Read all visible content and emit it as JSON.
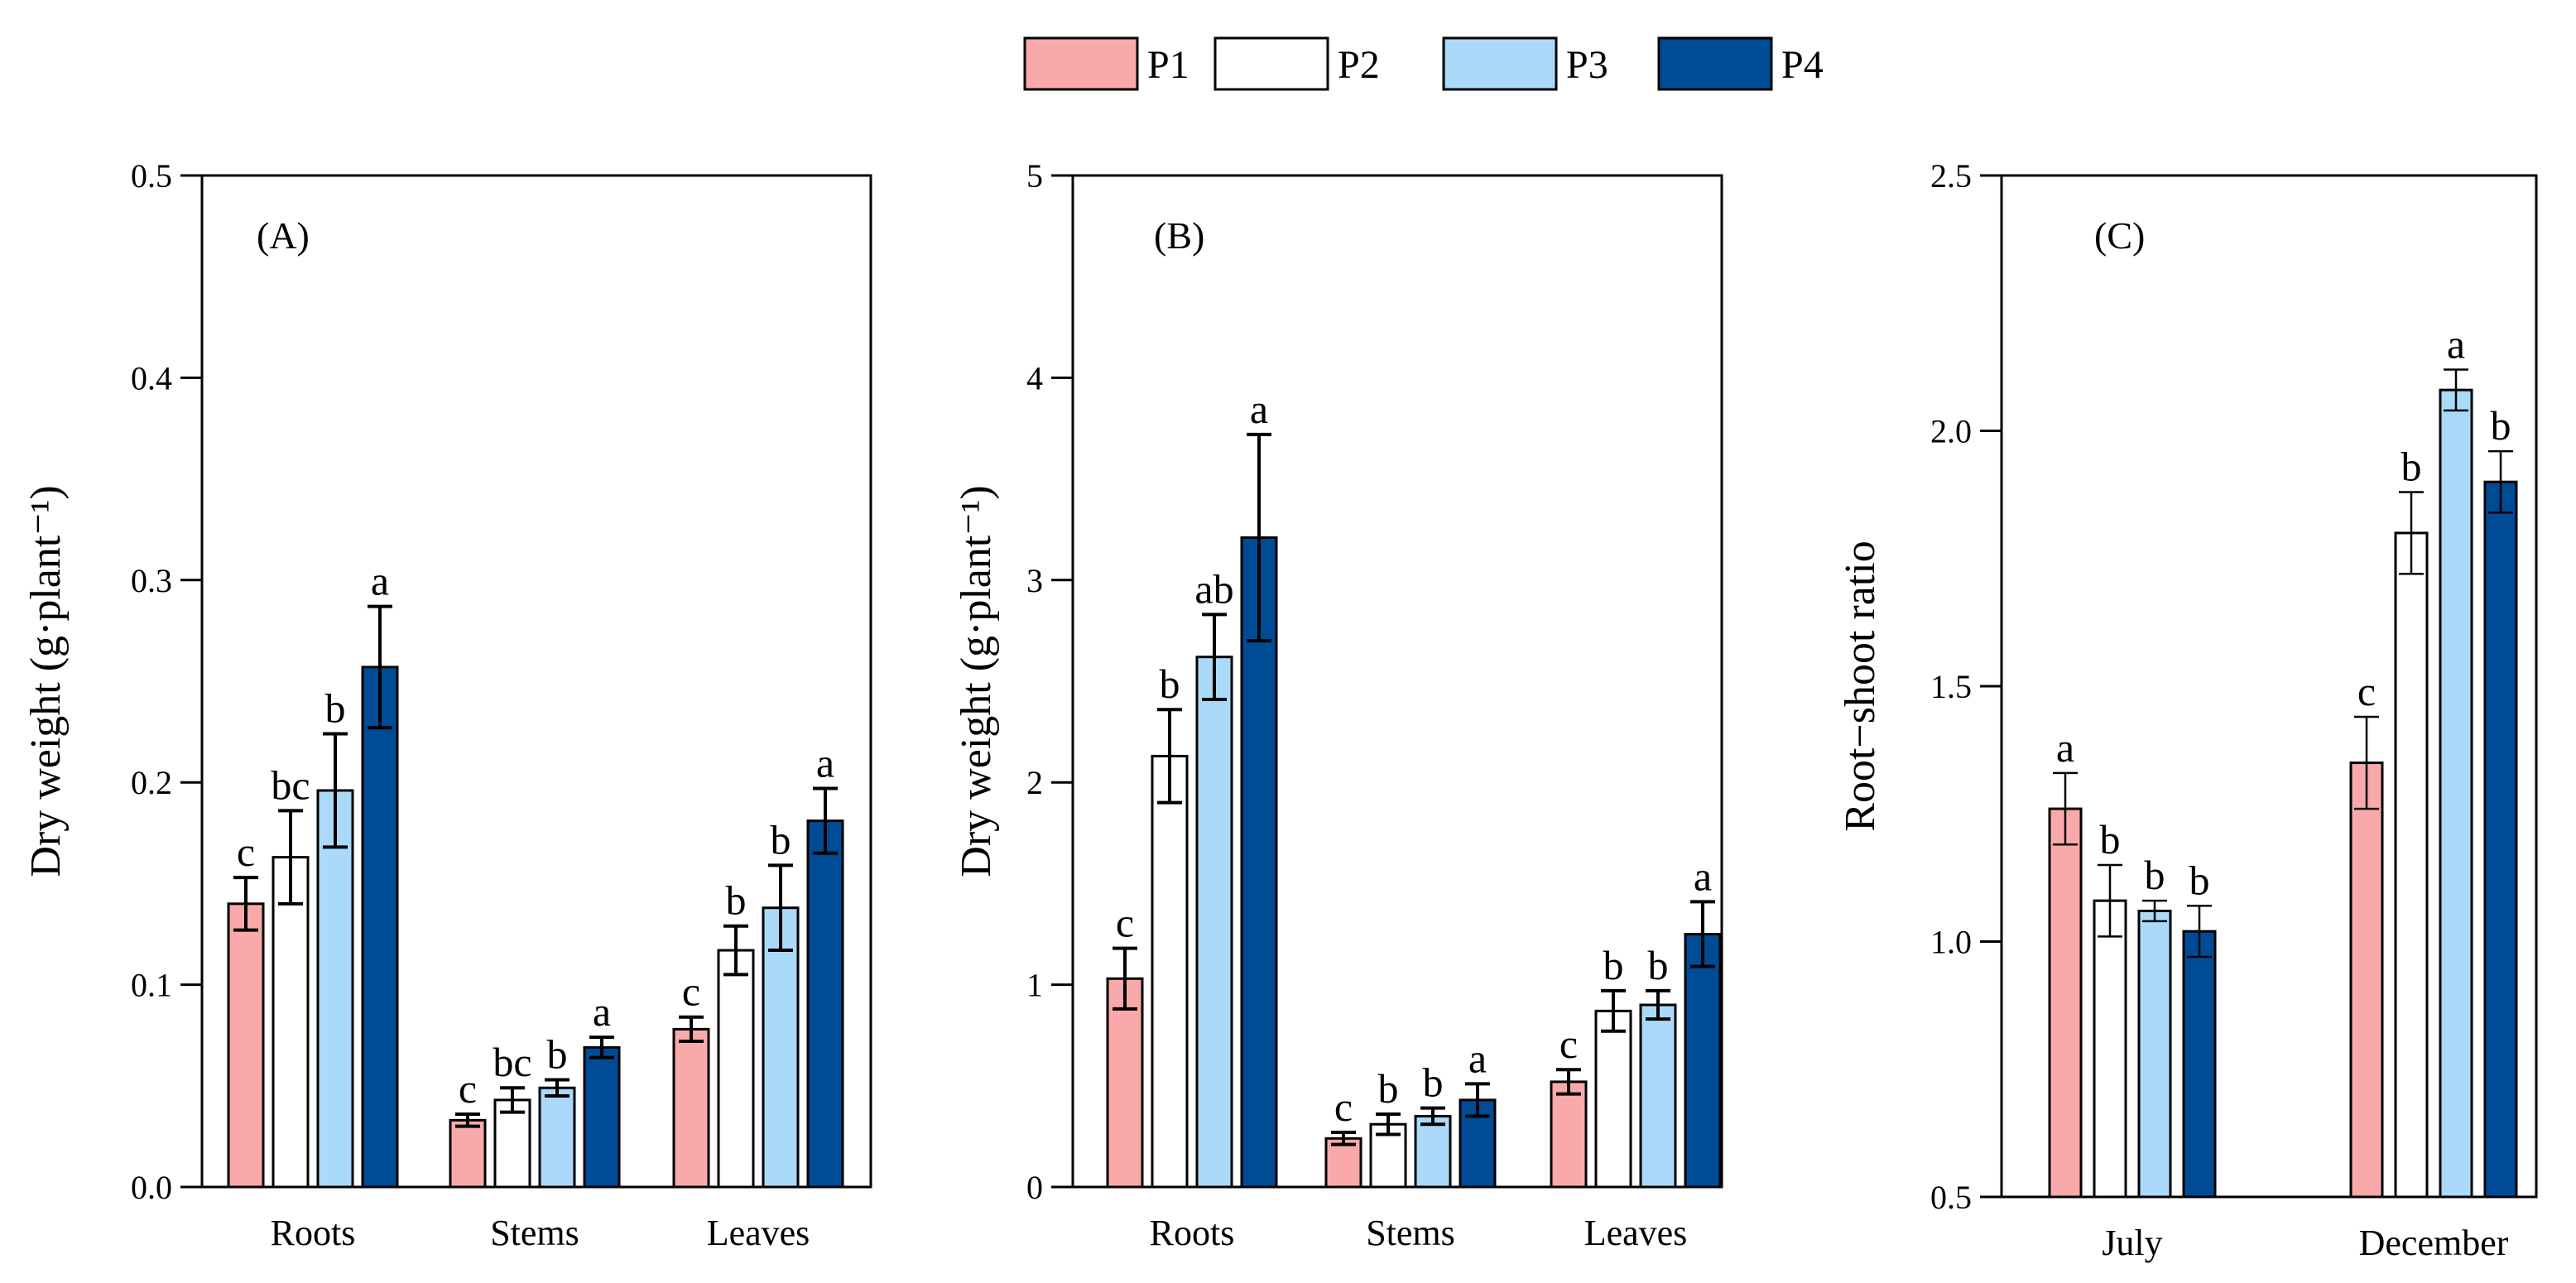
{
  "legend": [
    {
      "name": "P1",
      "color": "#f9a9a9"
    },
    {
      "name": "P2",
      "color": "#ffffff"
    },
    {
      "name": "P3",
      "color": "#abd9f9"
    },
    {
      "name": "P4",
      "color": "#004b96"
    }
  ],
  "chart_data": [
    {
      "type": "bar",
      "panel": "(A)",
      "ylabel": "Dry weight  (g·plant⁻¹)",
      "ylim": [
        0,
        0.5
      ],
      "yticks": [
        "0.0",
        "0.1",
        "0.2",
        "0.3",
        "0.4",
        "0.5"
      ],
      "categories": [
        "Roots",
        "Stems",
        "Leaves"
      ],
      "series": [
        {
          "name": "P1",
          "values": [
            0.14,
            0.033,
            0.078
          ],
          "errors": [
            0.013,
            0.003,
            0.006
          ],
          "letters": [
            "c",
            "c",
            "c"
          ]
        },
        {
          "name": "P2",
          "values": [
            0.163,
            0.043,
            0.117
          ],
          "errors": [
            0.023,
            0.006,
            0.012
          ],
          "letters": [
            "bc",
            "bc",
            "b"
          ]
        },
        {
          "name": "P3",
          "values": [
            0.196,
            0.049,
            0.138
          ],
          "errors": [
            0.028,
            0.004,
            0.021
          ],
          "letters": [
            "b",
            "b",
            "b"
          ]
        },
        {
          "name": "P4",
          "values": [
            0.257,
            0.069,
            0.181
          ],
          "errors": [
            0.03,
            0.005,
            0.016
          ],
          "letters": [
            "a",
            "a",
            "a"
          ]
        }
      ]
    },
    {
      "type": "bar",
      "panel": "(B)",
      "ylabel": "Dry weight  (g·plant⁻¹)",
      "ylim": [
        0,
        5
      ],
      "yticks": [
        "0",
        "1",
        "2",
        "3",
        "4",
        "5"
      ],
      "categories": [
        "Roots",
        "Stems",
        "Leaves"
      ],
      "series": [
        {
          "name": "P1",
          "values": [
            1.03,
            0.24,
            0.52
          ],
          "errors": [
            0.15,
            0.03,
            0.06
          ],
          "letters": [
            "c",
            "c",
            "c"
          ]
        },
        {
          "name": "P2",
          "values": [
            2.13,
            0.31,
            0.87
          ],
          "errors": [
            0.23,
            0.05,
            0.1
          ],
          "letters": [
            "b",
            "b",
            "b"
          ]
        },
        {
          "name": "P3",
          "values": [
            2.62,
            0.35,
            0.9
          ],
          "errors": [
            0.21,
            0.04,
            0.07
          ],
          "letters": [
            "ab",
            "b",
            "b"
          ]
        },
        {
          "name": "P4",
          "values": [
            3.21,
            0.43,
            1.25
          ],
          "errors": [
            0.51,
            0.08,
            0.16
          ],
          "letters": [
            "a",
            "a",
            "a"
          ]
        }
      ]
    },
    {
      "type": "bar",
      "panel": "(C)",
      "ylabel": "Root−shoot ratio",
      "ylim": [
        0.5,
        2.5
      ],
      "yticks": [
        "0.5",
        "1.0",
        "1.5",
        "2.0",
        "2.5"
      ],
      "categories": [
        "July",
        "December"
      ],
      "series": [
        {
          "name": "P1",
          "values": [
            1.26,
            1.35
          ],
          "errors": [
            0.07,
            0.09
          ],
          "letters": [
            "a",
            "c"
          ]
        },
        {
          "name": "P2",
          "values": [
            1.08,
            1.8
          ],
          "errors": [
            0.07,
            0.08
          ],
          "letters": [
            "b",
            "b"
          ]
        },
        {
          "name": "P3",
          "values": [
            1.06,
            2.08
          ],
          "errors": [
            0.02,
            0.04
          ],
          "letters": [
            "b",
            "a"
          ]
        },
        {
          "name": "P4",
          "values": [
            1.02,
            1.9
          ],
          "errors": [
            0.05,
            0.06
          ],
          "letters": [
            "b",
            "b"
          ]
        }
      ]
    }
  ]
}
